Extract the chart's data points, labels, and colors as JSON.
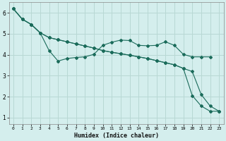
{
  "xlabel": "Humidex (Indice chaleur)",
  "background_color": "#d4eeed",
  "grid_color": "#b8d8d4",
  "line_color": "#1a6b5a",
  "xlim": [
    -0.5,
    23.5
  ],
  "ylim": [
    0.7,
    6.5
  ],
  "xticks": [
    0,
    1,
    2,
    3,
    4,
    5,
    6,
    7,
    8,
    9,
    10,
    11,
    12,
    13,
    14,
    15,
    16,
    17,
    18,
    19,
    20,
    21,
    22,
    23
  ],
  "yticks": [
    1,
    2,
    3,
    4,
    5,
    6
  ],
  "line1_x": [
    0,
    1,
    2,
    3,
    4,
    5,
    6,
    7,
    8,
    9,
    10,
    11,
    12,
    13,
    14,
    15,
    16,
    17,
    18,
    19,
    20,
    21,
    22,
    23
  ],
  "line1_y": [
    6.2,
    5.7,
    5.45,
    5.05,
    4.82,
    4.72,
    4.62,
    4.52,
    4.42,
    4.32,
    4.2,
    4.12,
    4.05,
    3.98,
    3.9,
    3.82,
    3.72,
    3.62,
    3.52,
    3.35,
    3.2,
    2.1,
    1.55,
    1.3
  ],
  "line2_x": [
    0,
    1,
    2,
    3,
    4,
    5,
    6,
    7,
    8,
    9,
    10,
    11,
    12,
    13,
    14,
    15,
    16,
    17,
    18,
    19,
    20,
    21,
    22,
    23
  ],
  "line2_y": [
    6.2,
    5.7,
    5.45,
    5.05,
    4.2,
    3.7,
    3.82,
    3.87,
    3.9,
    4.02,
    4.45,
    4.6,
    4.7,
    4.68,
    4.45,
    4.43,
    4.45,
    4.62,
    4.45,
    4.02,
    3.9,
    3.9,
    3.9,
    null
  ],
  "line3_x": [
    0,
    1,
    2,
    3,
    4,
    5,
    6,
    7,
    8,
    9,
    10,
    11,
    12,
    13,
    14,
    15,
    16,
    17,
    18,
    19,
    20,
    21,
    22,
    23
  ],
  "line3_y": [
    6.2,
    5.7,
    5.45,
    5.05,
    4.82,
    4.72,
    4.62,
    4.52,
    4.42,
    4.32,
    4.2,
    4.12,
    4.05,
    3.98,
    3.9,
    3.82,
    3.72,
    3.62,
    3.52,
    3.35,
    2.05,
    1.55,
    1.3,
    1.3
  ]
}
